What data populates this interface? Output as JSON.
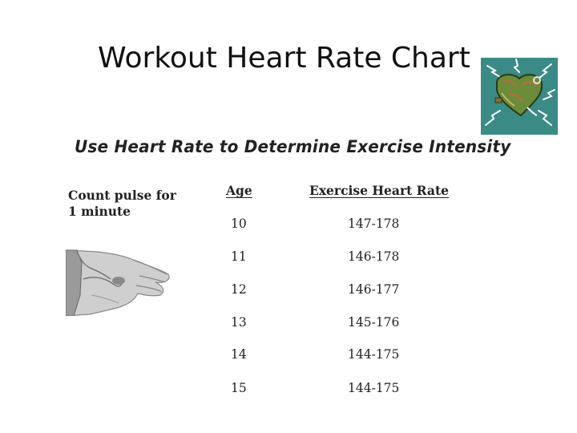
{
  "slide": {
    "title": "Workout Heart Rate Chart"
  },
  "logo": {
    "icon": "heart-lightning-logo-icon",
    "background": "#3a8a86"
  },
  "figure": {
    "subtitle": "Use Heart Rate to Determine Exercise Intensity",
    "pulse_label_line1": "Count pulse for",
    "pulse_label_line2": "1 minute",
    "hand_icon": "wrist-pulse-hand-icon",
    "table": {
      "headers": {
        "age": "Age",
        "rate": "Exercise Heart Rate"
      },
      "rows": [
        {
          "age": "10",
          "rate": "147-178"
        },
        {
          "age": "11",
          "rate": "146-178"
        },
        {
          "age": "12",
          "rate": "146-177"
        },
        {
          "age": "13",
          "rate": "145-176"
        },
        {
          "age": "14",
          "rate": "144-175"
        },
        {
          "age": "15",
          "rate": "144-175"
        }
      ]
    }
  }
}
